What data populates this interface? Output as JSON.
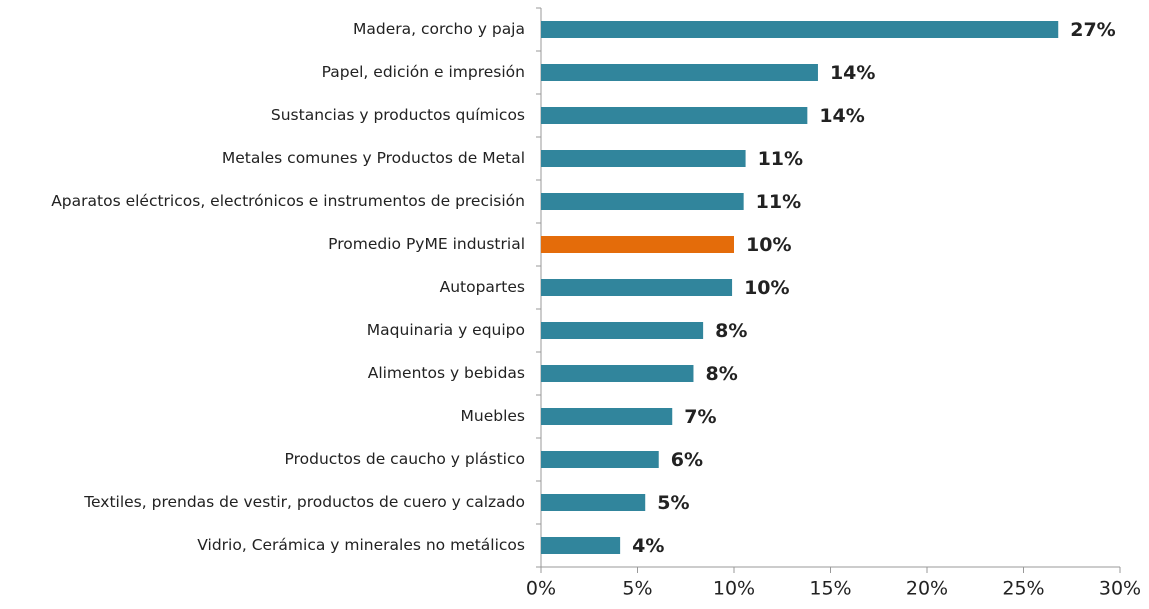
{
  "chart_data": {
    "type": "hbar",
    "categories": [
      "Madera, corcho y paja",
      "Papel, edición e impresión",
      "Sustancias y productos químicos",
      "Metales comunes y Productos de Metal",
      "Aparatos eléctricos, electrónicos e instrumentos de precisión",
      "Promedio PyME industrial",
      "Autopartes",
      "Maquinaria y equipo",
      "Alimentos y bebidas",
      "Muebles",
      "Productos de caucho y plástico",
      "Textiles, prendas de vestir, productos de cuero y calzado",
      "Vidrio, Cerámica y minerales no metálicos"
    ],
    "values": [
      26.8,
      14.35,
      13.8,
      10.6,
      10.5,
      10.0,
      9.9,
      8.4,
      7.9,
      6.8,
      6.1,
      5.4,
      4.1
    ],
    "value_labels": [
      "27%",
      "14%",
      "14%",
      "11%",
      "11%",
      "10%",
      "10%",
      "8%",
      "8%",
      "7%",
      "6%",
      "5%",
      "4%"
    ],
    "colors": [
      "#31859c",
      "#31859c",
      "#31859c",
      "#31859c",
      "#31859c",
      "#e46c0a",
      "#31859c",
      "#31859c",
      "#31859c",
      "#31859c",
      "#31859c",
      "#31859c",
      "#31859c"
    ],
    "xlim": [
      0,
      30
    ],
    "xticks": [
      {
        "value": 0,
        "label": "0%"
      },
      {
        "value": 5,
        "label": "5%"
      },
      {
        "value": 10,
        "label": "10%"
      },
      {
        "value": 15,
        "label": "15%"
      },
      {
        "value": 20,
        "label": "20%"
      },
      {
        "value": 25,
        "label": "25%"
      },
      {
        "value": 30,
        "label": "30%"
      }
    ]
  }
}
